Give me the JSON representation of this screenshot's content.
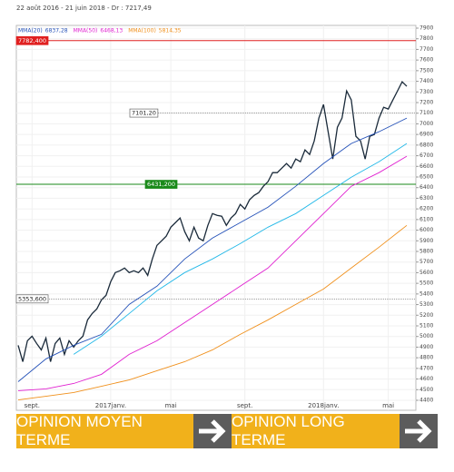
{
  "chart_data": {
    "type": "line",
    "title": "22 août 2016 - 21 juin 2018 - Dr : 7217,49",
    "xlim": [
      0,
      84
    ],
    "xticks": [
      {
        "value": 3,
        "label": "sept."
      },
      {
        "value": 20,
        "label": "2017janv."
      },
      {
        "value": 33,
        "label": "mai"
      },
      {
        "value": 49,
        "label": "sept."
      },
      {
        "value": 66,
        "label": "2018janv."
      },
      {
        "value": 80,
        "label": "mai"
      }
    ],
    "ylim": [
      4400,
      7900
    ],
    "yticks": [
      4400,
      4500,
      4600,
      4700,
      4800,
      4900,
      5000,
      5100,
      5200,
      5300,
      5400,
      5500,
      5600,
      5700,
      5800,
      5900,
      6000,
      6100,
      6200,
      6300,
      6400,
      6500,
      6600,
      6700,
      6800,
      6900,
      7000,
      7100,
      7200,
      7300,
      7400,
      7500,
      7600,
      7700,
      7800,
      7900
    ],
    "grid": true,
    "series": [
      {
        "color": "#1a2a3a",
        "values": [
          4917,
          4763,
          4960,
          5003,
          4934,
          4874,
          4985,
          4763,
          4934,
          4985,
          4832,
          4960,
          4900,
          4960,
          5003,
          5156,
          5216,
          5259,
          5344,
          5387,
          5515,
          5601,
          5618,
          5644,
          5601,
          5618,
          5601,
          5644,
          5575,
          5729,
          5857,
          5900,
          5943,
          6028,
          6071,
          6114,
          5986,
          5900,
          6028,
          5926,
          5900,
          6045,
          6156,
          6139,
          6131,
          6045,
          6114,
          6156,
          6242,
          6199,
          6285,
          6327,
          6353,
          6413,
          6456,
          6541,
          6541,
          6584,
          6627,
          6584,
          6669,
          6644,
          6755,
          6712,
          6840,
          7054,
          7182,
          6926,
          6669,
          6968,
          7054,
          7310,
          7225,
          6883,
          6840,
          6669,
          6883,
          6900,
          7054,
          7156,
          7139,
          7225,
          7310,
          7396,
          7353
        ]
      },
      {
        "name": "MMA(20)",
        "legend_value": "6837,28",
        "color": "#2451b8",
        "x": [
          0,
          6,
          12,
          18,
          24,
          30,
          36,
          42,
          48,
          54,
          60,
          66,
          72,
          78,
          84
        ],
        "values": [
          4575,
          4789,
          4917,
          5020,
          5302,
          5473,
          5729,
          5926,
          6071,
          6216,
          6413,
          6627,
          6815,
          6926,
          7054
        ]
      },
      {
        "name": "MMA(50)",
        "legend_value": "6468,13",
        "color": "#e020d0",
        "x": [
          0,
          6,
          12,
          18,
          24,
          30,
          36,
          42,
          48,
          54,
          60,
          66,
          72,
          78,
          84
        ],
        "values": [
          4490,
          4507,
          4558,
          4644,
          4832,
          4960,
          5131,
          5302,
          5473,
          5644,
          5900,
          6156,
          6413,
          6541,
          6695
        ]
      },
      {
        "name": "MMA(100)",
        "legend_value": "5814,35",
        "color": "#f0901c",
        "x": [
          0,
          6,
          12,
          18,
          24,
          30,
          36,
          42,
          48,
          54,
          60,
          66,
          72,
          78,
          84
        ],
        "values": [
          4404,
          4438,
          4473,
          4532,
          4592,
          4678,
          4763,
          4874,
          5020,
          5156,
          5302,
          5447,
          5644,
          5840,
          6045
        ]
      },
      {
        "color": "#22b8e8",
        "x": [
          12,
          18,
          24,
          30,
          36,
          42,
          48,
          54,
          60,
          66,
          72,
          78,
          84
        ],
        "values": [
          4832,
          5003,
          5216,
          5430,
          5601,
          5729,
          5874,
          6028,
          6156,
          6327,
          6498,
          6644,
          6815
        ]
      }
    ],
    "levels": [
      {
        "value": 7782.4,
        "label": "7782,400",
        "color": "#e02020",
        "style": "solid"
      },
      {
        "value": 7101.2,
        "label": "7101,20",
        "color": "#666666",
        "style": "dotted"
      },
      {
        "value": 6431.2,
        "label": "6431,200",
        "color": "#1a8a1a",
        "style": "solid"
      },
      {
        "value": 5353.6,
        "label": "5353,600",
        "color": "#666666",
        "style": "dotted"
      }
    ]
  },
  "buttons": [
    {
      "label": "OPINION MOYEN TERME"
    },
    {
      "label": "OPINION LONG TERME"
    }
  ]
}
